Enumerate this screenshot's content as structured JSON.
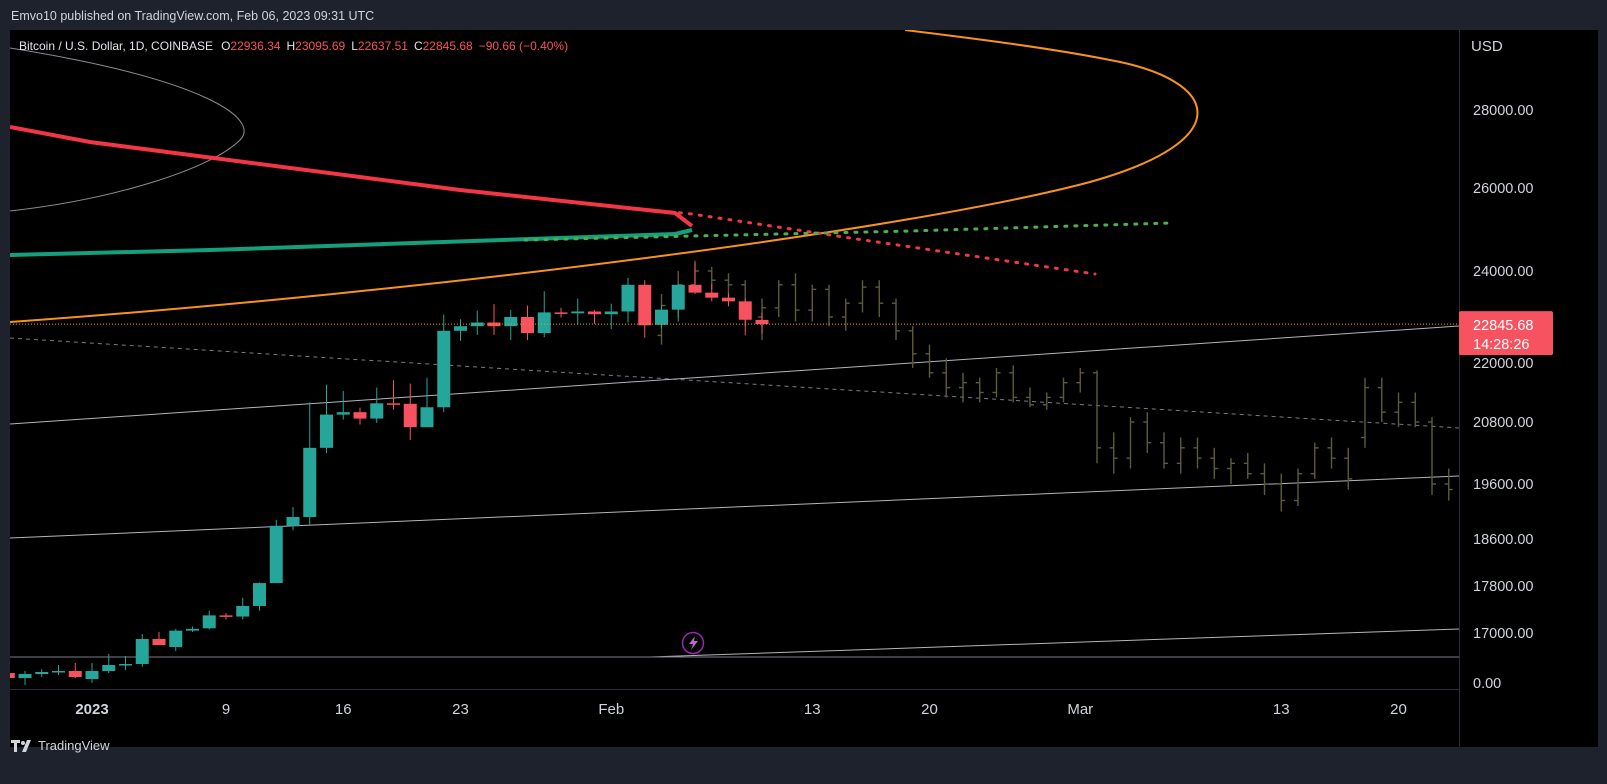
{
  "published": "Emvo10 published on TradingView.com, Feb 06, 2023 09:31 UTC",
  "legend": {
    "symbol": "Bitcoin / U.S. Dollar, 1D, COINBASE",
    "o_label": "O",
    "o_value": "22936.34",
    "h_label": "H",
    "h_value": "23095.69",
    "l_label": "L",
    "l_value": "22637.51",
    "c_label": "C",
    "c_value": "22845.68",
    "change": "−90.66 (−0.40%)"
  },
  "footer_brand": "TradingView",
  "colors": {
    "up": "#26a69a",
    "down": "#f7525f",
    "projection": "#5d5b3a",
    "orange": "#f7931a",
    "red_line": "#f23645",
    "green_line": "#15a07c",
    "green_dots": "#4caf50",
    "grey_line": "#9598a1"
  },
  "chart_data": {
    "type": "candlestick",
    "symbol": "Bitcoin / U.S. Dollar",
    "interval": "1D",
    "exchange": "COINBASE",
    "currency": "USD",
    "y_axis": {
      "label": "USD",
      "ticks": [
        "28000.00",
        "26000.00",
        "24000.00",
        "22000.00",
        "20800.00",
        "19600.00",
        "18600.00",
        "17800.00",
        "17000.00",
        "0.00"
      ]
    },
    "x_axis": {
      "ticks": [
        {
          "label": "2023",
          "day": 0
        },
        {
          "label": "9",
          "day": 8
        },
        {
          "label": "16",
          "day": 15
        },
        {
          "label": "23",
          "day": 22
        },
        {
          "label": "Feb",
          "day": 31
        },
        {
          "label": "13",
          "day": 43
        },
        {
          "label": "20",
          "day": 50
        },
        {
          "label": "Mar",
          "day": 59
        },
        {
          "label": "13",
          "day": 71
        },
        {
          "label": "20",
          "day": 78
        }
      ]
    },
    "last_price": {
      "value": "22845.68",
      "countdown": "14:28:26"
    },
    "candles": [
      [
        -5,
        16600,
        16650,
        16500,
        16550
      ],
      [
        -4,
        16550,
        16620,
        16480,
        16590
      ],
      [
        -3,
        16590,
        16640,
        16560,
        16610
      ],
      [
        -2,
        16610,
        16680,
        16580,
        16620
      ],
      [
        -1,
        16620,
        16700,
        16550,
        16560
      ],
      [
        0,
        16540,
        16700,
        16500,
        16620
      ],
      [
        1,
        16620,
        16790,
        16600,
        16680
      ],
      [
        2,
        16680,
        16770,
        16630,
        16690
      ],
      [
        3,
        16690,
        16990,
        16660,
        16940
      ],
      [
        4,
        16940,
        17020,
        16880,
        16880
      ],
      [
        5,
        16860,
        17070,
        16820,
        17040
      ],
      [
        6,
        17040,
        17110,
        17020,
        17070
      ],
      [
        7,
        17080,
        17380,
        17060,
        17300
      ],
      [
        8,
        17300,
        17340,
        17230,
        17280
      ],
      [
        9,
        17280,
        17600,
        17230,
        17460
      ],
      [
        10,
        17460,
        17860,
        17380,
        17850
      ],
      [
        11,
        17850,
        18950,
        17850,
        18840
      ],
      [
        12,
        18840,
        19180,
        18760,
        19000
      ],
      [
        13,
        19000,
        21200,
        18850,
        20300
      ],
      [
        14,
        20300,
        21560,
        20200,
        20950
      ],
      [
        15,
        20950,
        21430,
        20850,
        21000
      ],
      [
        16,
        21000,
        21090,
        20750,
        20870
      ],
      [
        17,
        20870,
        21500,
        20780,
        21180
      ],
      [
        18,
        21180,
        21650,
        21050,
        21170
      ],
      [
        19,
        21170,
        21580,
        20450,
        20700
      ],
      [
        20,
        20700,
        21700,
        20700,
        21100
      ],
      [
        21,
        21100,
        23050,
        21000,
        22700
      ],
      [
        22,
        22700,
        22950,
        22480,
        22800
      ],
      [
        23,
        22800,
        23140,
        22610,
        22880
      ],
      [
        24,
        22880,
        23280,
        22610,
        22800
      ],
      [
        25,
        22800,
        23150,
        22500,
        23000
      ],
      [
        26,
        23000,
        23250,
        22500,
        22650
      ],
      [
        27,
        22650,
        23560,
        22560,
        23100
      ],
      [
        28,
        23100,
        23200,
        22990,
        23080
      ],
      [
        29,
        23080,
        23400,
        22850,
        23120
      ],
      [
        30,
        23120,
        23150,
        22850,
        23060
      ],
      [
        31,
        23060,
        23290,
        22740,
        23120
      ],
      [
        32,
        23120,
        23850,
        22880,
        23700
      ],
      [
        33,
        23700,
        23800,
        22550,
        22820
      ],
      [
        34,
        22830,
        23260,
        22750,
        23160
      ],
      [
        35,
        23160,
        23720,
        22900,
        23700
      ],
      [
        36,
        23700,
        24200,
        23550,
        23530
      ],
      [
        37,
        23530,
        23720,
        23340,
        23420
      ],
      [
        38,
        23420,
        23520,
        23230,
        23340
      ],
      [
        39,
        23340,
        23400,
        22600,
        22940
      ],
      [
        40,
        22936.34,
        23095.69,
        22637.51,
        22845.68
      ]
    ],
    "projection": [
      [
        34,
        22600,
        23500,
        22400,
        23250
      ],
      [
        35,
        23250,
        24000,
        23000,
        23700
      ],
      [
        36,
        23700,
        24250,
        23500,
        24000
      ],
      [
        37,
        24000,
        24100,
        23600,
        23800
      ],
      [
        38,
        23800,
        23950,
        23400,
        23700
      ],
      [
        39,
        23700,
        23800,
        22800,
        23000
      ],
      [
        40,
        23000,
        23400,
        22500,
        23200
      ],
      [
        41,
        23200,
        23800,
        23000,
        23700
      ],
      [
        42,
        23700,
        23950,
        22900,
        23150
      ],
      [
        43,
        23150,
        23700,
        22900,
        23600
      ],
      [
        44,
        23600,
        23700,
        22800,
        23000
      ],
      [
        45,
        23000,
        23400,
        22700,
        23300
      ],
      [
        46,
        23300,
        23800,
        23100,
        23650
      ],
      [
        47,
        23650,
        23800,
        23000,
        23300
      ],
      [
        48,
        23300,
        23400,
        22500,
        22700
      ],
      [
        49,
        22700,
        22800,
        21900,
        22200
      ],
      [
        50,
        22200,
        22400,
        21700,
        21800
      ],
      [
        51,
        21800,
        22100,
        21300,
        21500
      ],
      [
        52,
        21500,
        21800,
        21200,
        21600
      ],
      [
        53,
        21600,
        21700,
        21200,
        21400
      ],
      [
        54,
        21400,
        21900,
        21300,
        21800
      ],
      [
        55,
        21800,
        21950,
        21200,
        21300
      ],
      [
        56,
        21300,
        21500,
        21100,
        21150
      ],
      [
        57,
        21150,
        21400,
        21050,
        21300
      ],
      [
        58,
        21300,
        21700,
        21200,
        21600
      ],
      [
        59,
        21600,
        21900,
        21400,
        21800
      ],
      [
        60,
        21800,
        21850,
        20000,
        20300
      ],
      [
        61,
        20300,
        20600,
        19800,
        20100
      ],
      [
        62,
        20100,
        20900,
        19900,
        20800
      ],
      [
        63,
        20800,
        21000,
        20200,
        20400
      ],
      [
        64,
        20400,
        20600,
        19900,
        20000
      ],
      [
        65,
        20000,
        20500,
        19800,
        20300
      ],
      [
        66,
        20300,
        20500,
        19900,
        20100
      ],
      [
        67,
        20100,
        20300,
        19700,
        19900
      ],
      [
        68,
        19900,
        20100,
        19600,
        20000
      ],
      [
        69,
        20000,
        20200,
        19700,
        19800
      ],
      [
        70,
        19800,
        20000,
        19400,
        19600
      ],
      [
        71,
        19600,
        19800,
        19100,
        19300
      ],
      [
        72,
        19300,
        19900,
        19200,
        19800
      ],
      [
        73,
        19800,
        20400,
        19700,
        20300
      ],
      [
        74,
        20300,
        20500,
        19900,
        20100
      ],
      [
        75,
        20100,
        20300,
        19500,
        19700
      ],
      [
        76,
        20500,
        21700,
        20300,
        21500
      ],
      [
        77,
        21500,
        21700,
        20800,
        21000
      ],
      [
        78,
        21000,
        21400,
        20700,
        21200
      ],
      [
        79,
        21200,
        21400,
        20700,
        20800
      ],
      [
        80,
        20800,
        20900,
        19400,
        19600
      ],
      [
        81,
        19600,
        19900,
        19300,
        19500
      ],
      [
        82,
        19500,
        19900,
        19400,
        19800
      ],
      [
        83,
        19800,
        20000,
        19600,
        19700
      ],
      [
        84,
        19700,
        19800,
        19100,
        19300
      ],
      [
        85,
        19300,
        19700,
        19100,
        19500
      ],
      [
        86,
        19500,
        19900,
        19400,
        19800
      ],
      [
        87,
        19800,
        20000,
        19400,
        19500
      ],
      [
        88,
        19500,
        19800,
        19300,
        19700
      ],
      [
        89,
        19700,
        20000,
        19500,
        19800
      ],
      [
        90,
        19800,
        19900,
        19200,
        19300
      ],
      [
        91,
        19300,
        19600,
        19000,
        19100
      ],
      [
        92,
        19100,
        19500,
        18900,
        19300
      ],
      [
        93,
        19300,
        19700,
        19100,
        19600
      ],
      [
        94,
        19600,
        19800,
        19300,
        19400
      ],
      [
        95,
        19400,
        19700,
        19200,
        19500
      ],
      [
        96,
        19500,
        19800,
        19300,
        19400
      ],
      [
        97,
        19400,
        19600,
        19100,
        19200
      ],
      [
        98,
        19200,
        19700,
        19000,
        19600
      ],
      [
        99,
        19600,
        20000,
        19400,
        19800
      ],
      [
        100,
        19800,
        20300,
        19700,
        20100
      ],
      [
        101,
        20100,
        20200,
        19700,
        19900
      ],
      [
        102,
        19900,
        19800,
        18700,
        18800
      ],
      [
        103,
        18800,
        18900,
        18300,
        18400
      ],
      [
        104,
        18400,
        18600,
        18100,
        18300
      ],
      [
        105,
        18300,
        18500,
        17900,
        18100
      ],
      [
        106,
        18100,
        18300,
        17700,
        17800
      ],
      [
        107,
        17800,
        17950,
        17400,
        17500
      ],
      [
        108,
        17500,
        17700,
        17200,
        17300
      ],
      [
        109,
        17300,
        17400,
        16900,
        17000
      ],
      [
        110,
        17000,
        17100,
        16600,
        16700
      ]
    ]
  }
}
